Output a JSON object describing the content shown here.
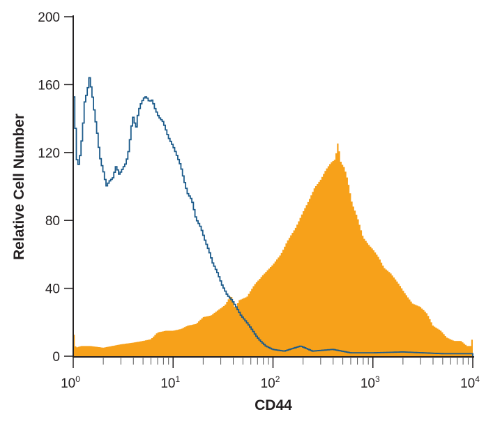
{
  "chart_data": {
    "type": "histogram",
    "title": "",
    "xlabel": "CD44",
    "ylabel": "Relative Cell Number",
    "xscale": "log",
    "xlim": [
      1,
      10000
    ],
    "ylim": [
      0,
      200
    ],
    "grid": false,
    "x_ticks": [
      {
        "value": 1,
        "base": "10",
        "exp": "0"
      },
      {
        "value": 10,
        "base": "10",
        "exp": "1"
      },
      {
        "value": 100,
        "base": "10",
        "exp": "2"
      },
      {
        "value": 1000,
        "base": "10",
        "exp": "3"
      },
      {
        "value": 10000,
        "base": "10",
        "exp": "4"
      }
    ],
    "y_ticks": [
      "0",
      "40",
      "80",
      "120",
      "160",
      "200"
    ],
    "series": [
      {
        "style": "filled",
        "color": "#f7a11a",
        "x": [
          1.0,
          1.06,
          1.2,
          1.5,
          2,
          3,
          4,
          5,
          6,
          7,
          8.5,
          10,
          12,
          14,
          17,
          20,
          24,
          28,
          33,
          38,
          42,
          46,
          55,
          65,
          80,
          100,
          120,
          140,
          170,
          200,
          230,
          260,
          300,
          340,
          380,
          420,
          447,
          480,
          520,
          560,
          620,
          700,
          800,
          900,
          1000,
          1150,
          1300,
          1500,
          1800,
          2100,
          2500,
          3000,
          3500,
          4000,
          4800,
          5500,
          6500,
          7600,
          8800,
          9700,
          10000
        ],
        "y": [
          16,
          5,
          6,
          6,
          5,
          7,
          8,
          9,
          10,
          14,
          15,
          15,
          16,
          18,
          19,
          23,
          24,
          27,
          30,
          36,
          28,
          33,
          35,
          42,
          48,
          54,
          60,
          68,
          76,
          85,
          92,
          99,
          104,
          110,
          114,
          116,
          126,
          114,
          111,
          104,
          90,
          82,
          70,
          66,
          63,
          58,
          52,
          49,
          43,
          37,
          31,
          29,
          25,
          18,
          15,
          11,
          9,
          9,
          6,
          6,
          15
        ]
      },
      {
        "style": "outline",
        "color": "#1b5a8a",
        "x": [
          1.0,
          1.1,
          1.15,
          1.2,
          1.25,
          1.3,
          1.4,
          1.45,
          1.55,
          1.65,
          1.75,
          1.85,
          1.95,
          2.05,
          2.15,
          2.3,
          2.5,
          2.7,
          2.9,
          3.1,
          3.4,
          3.6,
          3.8,
          3.95,
          4.1,
          4.3,
          4.5,
          4.8,
          5.1,
          5.4,
          5.8,
          6.2,
          6.6,
          7.2,
          8,
          9,
          10,
          11,
          12,
          13,
          14,
          15.5,
          17,
          19,
          21,
          23,
          25,
          28,
          31,
          35,
          39,
          43,
          48,
          53,
          58,
          63,
          68,
          75,
          85,
          100,
          130,
          190,
          250,
          400,
          600,
          1000,
          2000,
          5000,
          10000
        ],
        "y": [
          162,
          113,
          113,
          123,
          133,
          149,
          157,
          165,
          155,
          142,
          131,
          118,
          112,
          107,
          100,
          103,
          105,
          112,
          107,
          110,
          114,
          121,
          132,
          142,
          138,
          135,
          144,
          149,
          152,
          153,
          150,
          151,
          146,
          141,
          138,
          129,
          124,
          118,
          112,
          103,
          96,
          92,
          81,
          76,
          68,
          62,
          55,
          49,
          42,
          36,
          33,
          29,
          24,
          21,
          18,
          15,
          12,
          9,
          6,
          4,
          3,
          6,
          3,
          4,
          2,
          2,
          2.5,
          1.5,
          1.5
        ]
      }
    ]
  }
}
